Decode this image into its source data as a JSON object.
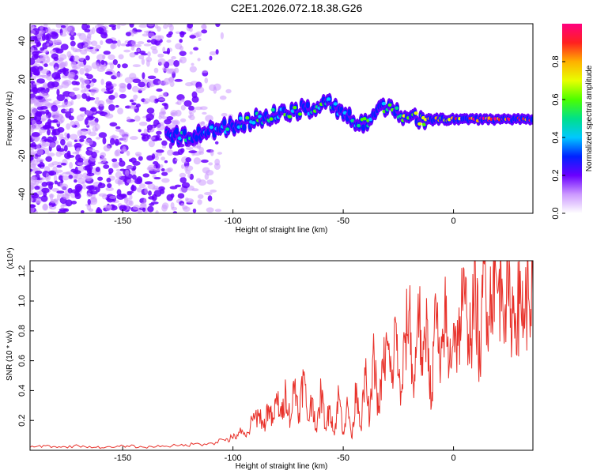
{
  "title": "C2E1.2026.072.18.38.G26",
  "colors": {
    "snr_line": "#e8312a",
    "noise": "#7b2cf0",
    "colormap": [
      "#ffffff",
      "#cc99ff",
      "#6a00ff",
      "#0022ff",
      "#00c8ff",
      "#00e08a",
      "#4cff00",
      "#e8ff00",
      "#ffb000",
      "#ff2020",
      "#ff007f"
    ]
  },
  "chart_data": [
    {
      "id": "spectrogram",
      "type": "heatmap",
      "title": "C2E1.2026.072.18.38.G26",
      "xlabel": "Height of straight line (km)",
      "ylabel": "Frequency (Hz)",
      "xlim": [
        -192,
        36
      ],
      "ylim": [
        -50,
        49
      ],
      "xticks": [
        -150,
        -100,
        -50,
        0
      ],
      "xtick_labels": [
        "-150",
        "-100",
        "-50",
        "0"
      ],
      "yticks": [
        40,
        20,
        0,
        -20,
        -40
      ],
      "ytick_labels": [
        "40",
        "20",
        "0",
        "-20",
        "-40"
      ],
      "colorbar": {
        "label": "Normalized spectral amplitude",
        "range": [
          0,
          1
        ],
        "ticks": [
          0.0,
          0.2,
          0.4,
          0.6,
          0.8
        ],
        "tick_labels": [
          "0.0",
          "0.2",
          "0.4",
          "0.6",
          "0.8"
        ]
      },
      "signal_track": [
        {
          "x": -130,
          "freq": -10,
          "amp": 0.25
        },
        {
          "x": -120,
          "freq": -9,
          "amp": 0.3
        },
        {
          "x": -110,
          "freq": -7,
          "amp": 0.32
        },
        {
          "x": -100,
          "freq": -4,
          "amp": 0.35
        },
        {
          "x": -90,
          "freq": -1,
          "amp": 0.4
        },
        {
          "x": -80,
          "freq": 2,
          "amp": 0.4
        },
        {
          "x": -70,
          "freq": 4,
          "amp": 0.45
        },
        {
          "x": -60,
          "freq": 6,
          "amp": 0.45
        },
        {
          "x": -55,
          "freq": 7,
          "amp": 0.42
        },
        {
          "x": -50,
          "freq": 2,
          "amp": 0.4
        },
        {
          "x": -45,
          "freq": -2,
          "amp": 0.4
        },
        {
          "x": -40,
          "freq": -3,
          "amp": 0.45
        },
        {
          "x": -35,
          "freq": 4,
          "amp": 0.45
        },
        {
          "x": -30,
          "freq": 5,
          "amp": 0.4
        },
        {
          "x": -20,
          "freq": 0,
          "amp": 0.55
        },
        {
          "x": -10,
          "freq": -1,
          "amp": 0.6
        },
        {
          "x": 0,
          "freq": -1,
          "amp": 0.75
        },
        {
          "x": 10,
          "freq": -1,
          "amp": 0.85
        },
        {
          "x": 20,
          "freq": -1,
          "amp": 0.9
        },
        {
          "x": 30,
          "freq": -1,
          "amp": 0.85
        },
        {
          "x": 36,
          "freq": -1,
          "amp": 0.8
        }
      ]
    },
    {
      "id": "snr",
      "type": "line",
      "title": "",
      "xlabel": "Height of straight line (km)",
      "ylabel": "SNR (10 * v/v)",
      "scale_label": "(x10⁴)",
      "xlim": [
        -192,
        36
      ],
      "ylim": [
        0,
        1.27
      ],
      "xticks": [
        -150,
        -100,
        -50,
        0
      ],
      "xtick_labels": [
        "-150",
        "-100",
        "-50",
        "0"
      ],
      "yticks": [
        0.2,
        0.4,
        0.6,
        0.8,
        1.0,
        1.2
      ],
      "ytick_labels": [
        "0.2",
        "0.4",
        "0.6",
        "0.8",
        "1.0",
        "1.2"
      ],
      "series": [
        {
          "name": "SNR",
          "x": [
            -192,
            -185,
            -178,
            -170,
            -162,
            -155,
            -148,
            -140,
            -132,
            -125,
            -118,
            -110,
            -104,
            -100,
            -97,
            -94,
            -91,
            -88,
            -86,
            -84,
            -82,
            -80,
            -78,
            -76,
            -74,
            -72,
            -70,
            -68,
            -66,
            -64,
            -62,
            -60,
            -58,
            -56,
            -54,
            -52,
            -50,
            -48,
            -46,
            -44,
            -42,
            -40,
            -38,
            -36,
            -34,
            -32,
            -30,
            -28,
            -26,
            -24,
            -22,
            -20,
            -18,
            -16,
            -14,
            -12,
            -10,
            -8,
            -6,
            -4,
            -2,
            0,
            2,
            4,
            6,
            8,
            10,
            12,
            14,
            16,
            18,
            20,
            22,
            24,
            26,
            28,
            30,
            32,
            34,
            36
          ],
          "values": [
            0.02,
            0.03,
            0.02,
            0.03,
            0.02,
            0.02,
            0.03,
            0.02,
            0.03,
            0.03,
            0.04,
            0.05,
            0.07,
            0.08,
            0.12,
            0.09,
            0.2,
            0.25,
            0.15,
            0.3,
            0.18,
            0.35,
            0.22,
            0.4,
            0.2,
            0.45,
            0.25,
            0.5,
            0.2,
            0.35,
            0.12,
            0.4,
            0.15,
            0.3,
            0.1,
            0.38,
            0.12,
            0.3,
            0.08,
            0.45,
            0.15,
            0.5,
            0.2,
            0.65,
            0.25,
            0.55,
            0.7,
            0.45,
            0.85,
            0.3,
            0.72,
            0.95,
            0.35,
            1.05,
            0.5,
            0.88,
            0.3,
            1.0,
            0.45,
            0.95,
            0.55,
            0.85,
            0.7,
            1.0,
            0.9,
            0.75,
            1.1,
            0.55,
            1.25,
            0.9,
            1.2,
            1.05,
            1.15,
            1.0,
            0.95,
            0.92,
            0.98,
            0.95,
            1.02,
            1.05
          ]
        }
      ]
    }
  ]
}
